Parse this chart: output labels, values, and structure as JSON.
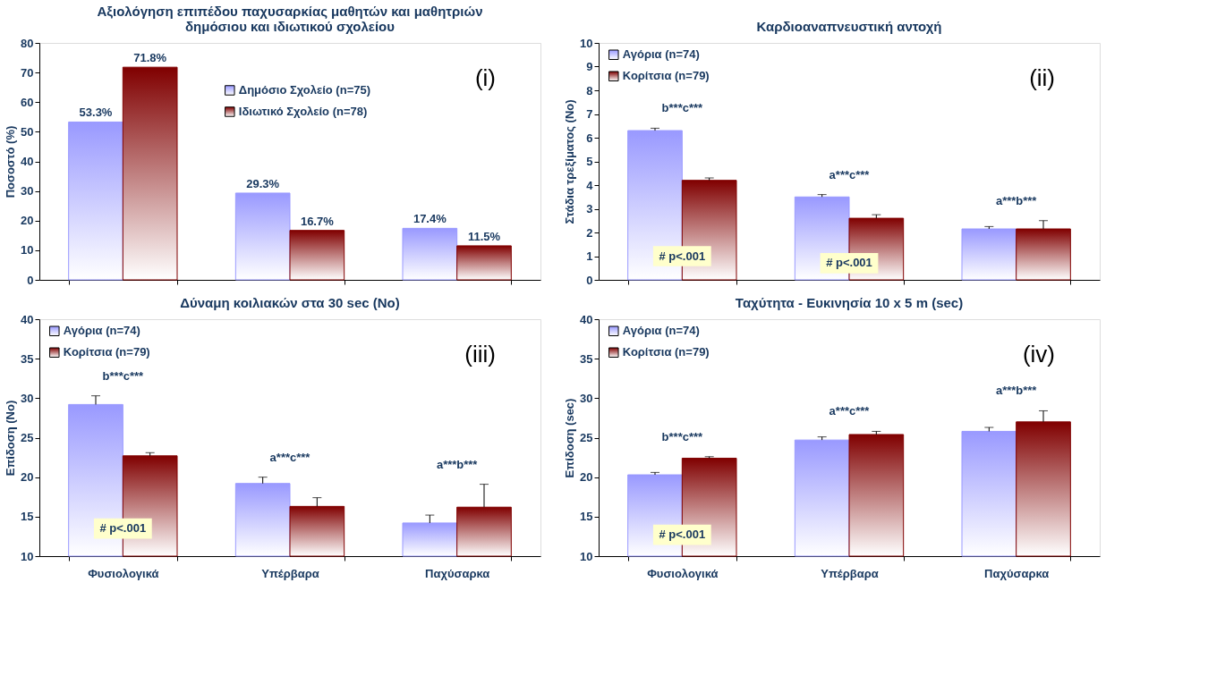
{
  "chart_data": [
    {
      "type": "bar",
      "title": "Αξιολόγηση επιπέδου παχυσαρκίας μαθητών και μαθητριών\nδημόσιου και ιδιωτικού σχολείου",
      "ylabel": "Ποσοστό  (%)",
      "categories": [
        "Φυσιολογικά",
        "Υπέρβαρα",
        "Παχύσαρκα"
      ],
      "tick_labels": "y",
      "ylim": [
        0,
        80
      ],
      "yticks": [
        0,
        10,
        20,
        30,
        40,
        50,
        60,
        70,
        80
      ],
      "legend": "top",
      "grid": false,
      "series": [
        {
          "name": "Δημόσιο Σχολείο (n=75)",
          "color": "#9999ff",
          "values": [
            53.3,
            29.3,
            17.4
          ],
          "value_labels": [
            "53.3%",
            "29.3%",
            "17.4%"
          ]
        },
        {
          "name": "Ιδιωτικό Σχολείο (n=78)",
          "color": "#800000",
          "values": [
            71.8,
            16.7,
            11.5
          ],
          "value_labels": [
            "71.8%",
            "16.7%",
            "11.5%"
          ]
        }
      ],
      "annotations": [
        "(i)"
      ]
    },
    {
      "type": "bar",
      "title": "Καρδιοαναπνευστική αντοχή",
      "ylabel": "Στάδια τρεξίματος (No)",
      "categories": [
        "Φυσιολογικά",
        "Υπέρβαρα",
        "Παχύσαρκα"
      ],
      "tick_labels": "y",
      "ylim": [
        0,
        10
      ],
      "yticks": [
        0,
        1,
        2,
        3,
        4,
        5,
        6,
        7,
        8,
        9,
        10
      ],
      "legend": "top left",
      "grid": false,
      "series": [
        {
          "name": "Αγόρια (n=74)",
          "color": "#9999ff",
          "values": [
            6.3,
            3.5,
            2.15
          ],
          "errors": [
            0.1,
            0.1,
            0.1
          ]
        },
        {
          "name": "Κορίτσια (n=79)",
          "color": "#800000",
          "values": [
            4.2,
            2.6,
            2.15
          ],
          "errors": [
            0.1,
            0.15,
            0.35
          ]
        }
      ],
      "annotations": [
        "(ii)",
        "b***c***",
        "a***c***",
        "a***b***",
        {
          "text": "# p<.001",
          "x": "Φυσιολογικά",
          "y": 1.0
        },
        {
          "text": "# p<.001",
          "x": "Υπέρβαρα",
          "y": 0.7
        }
      ]
    },
    {
      "type": "bar",
      "title": "Δύναμη κοιλιακών στα 30 sec (No)",
      "ylabel": "Επίδοση (No)",
      "categories": [
        "Φυσιολογικά",
        "Υπέρβαρα",
        "Παχύσαρκα"
      ],
      "ylim": [
        10,
        40
      ],
      "yticks": [
        10,
        15,
        20,
        25,
        30,
        35,
        40
      ],
      "legend": "top left",
      "grid": false,
      "series": [
        {
          "name": "Αγόρια (n=74)",
          "color": "#9999ff",
          "values": [
            29.2,
            19.2,
            14.2
          ],
          "errors": [
            1.1,
            0.8,
            1.0
          ]
        },
        {
          "name": "Κορίτσια (n=79)",
          "color": "#800000",
          "values": [
            22.7,
            16.3,
            16.2
          ],
          "errors": [
            0.4,
            1.1,
            2.9
          ]
        }
      ],
      "annotations": [
        "(iii)",
        "b***c***",
        "a***c***",
        "a***b***",
        {
          "text": "# p<.001",
          "x": "Φυσιολογικά",
          "y": 13.5
        }
      ]
    },
    {
      "type": "bar",
      "title": "Ταχύτητα - Ευκινησία 10 x 5 m (sec)",
      "ylabel": "Επίδοση (sec)",
      "categories": [
        "Φυσιολογικά",
        "Υπέρβαρα",
        "Παχύσαρκα"
      ],
      "ylim": [
        10,
        40
      ],
      "yticks": [
        10,
        15,
        20,
        25,
        30,
        35,
        40
      ],
      "legend": "top left",
      "grid": false,
      "series": [
        {
          "name": "Αγόρια (n=74)",
          "color": "#9999ff",
          "values": [
            20.3,
            24.7,
            25.8
          ],
          "errors": [
            0.3,
            0.4,
            0.5
          ]
        },
        {
          "name": "Κορίτσια (n=79)",
          "color": "#800000",
          "values": [
            22.4,
            25.4,
            27.0
          ],
          "errors": [
            0.2,
            0.4,
            1.4
          ]
        }
      ],
      "annotations": [
        "(iv)",
        "b***c***",
        "a***c***",
        "a***b***",
        {
          "text": "# p<.001",
          "x": "Φυσιολογικά",
          "y": 12.7
        }
      ]
    }
  ]
}
